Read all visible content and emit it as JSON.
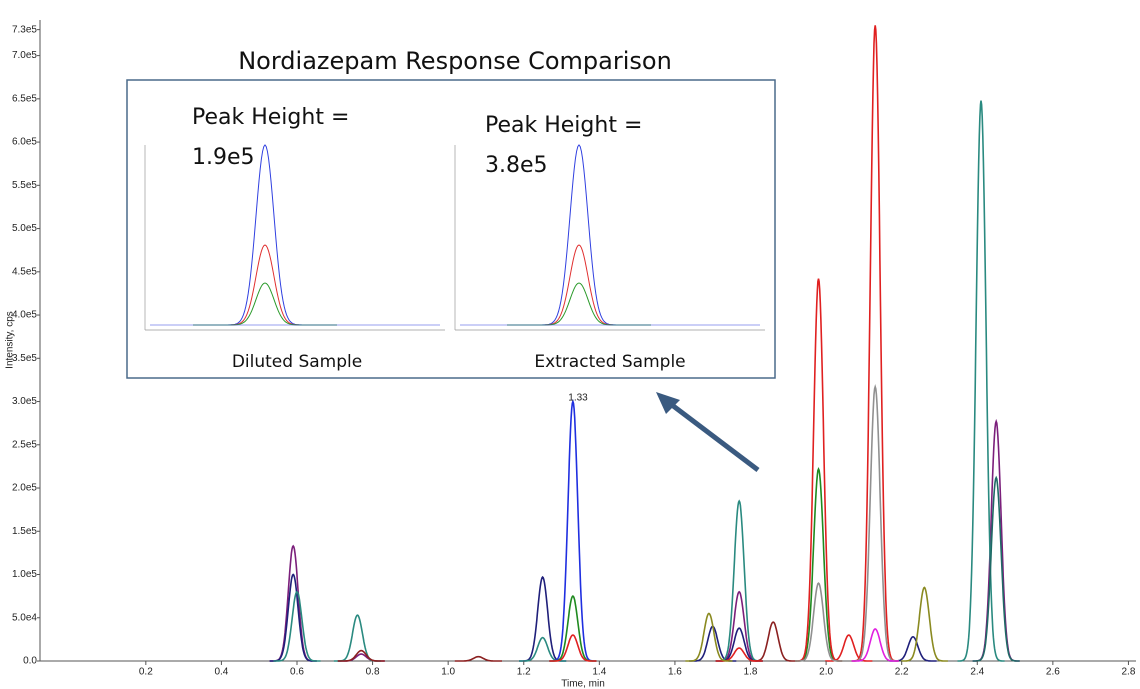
{
  "chart_data": {
    "type": "chromatogram",
    "inset_title": "Nordiazepam Response Comparison",
    "inset_texts": [
      "Peak Height =",
      "1.9e5",
      "Peak Height =",
      "3.8e5"
    ],
    "inset_captions": [
      "Diluted Sample",
      "Extracted Sample"
    ],
    "peak_label": "1.33",
    "xlabel": "Time, min",
    "ylabel": "Intensity, cps",
    "xlim": [
      -0.08,
      2.82
    ],
    "ylim": [
      0,
      740000
    ],
    "xticks": [
      0.2,
      0.4,
      0.6,
      0.8,
      {
        "value": 1.0,
        "label": "1.0"
      },
      1.2,
      1.4,
      1.6,
      1.8,
      {
        "value": 2.0,
        "label": "2.0"
      },
      2.2,
      2.4,
      2.6,
      2.8
    ],
    "yticks": [
      {
        "value": 0,
        "label": "0.0"
      },
      {
        "value": 50000,
        "label": "5.0e4"
      },
      {
        "value": 100000,
        "label": "1.0e5"
      },
      {
        "value": 150000,
        "label": "1.5e5"
      },
      {
        "value": 200000,
        "label": "2.0e5"
      },
      {
        "value": 250000,
        "label": "2.5e5"
      },
      {
        "value": 300000,
        "label": "3.0e5"
      },
      {
        "value": 350000,
        "label": "3.5e5"
      },
      {
        "value": 400000,
        "label": "4.0e5"
      },
      {
        "value": 450000,
        "label": "4.5e5"
      },
      {
        "value": 500000,
        "label": "5.0e5"
      },
      {
        "value": 550000,
        "label": "5.5e5"
      },
      {
        "value": 600000,
        "label": "6.0e5"
      },
      {
        "value": 650000,
        "label": "6.5e5"
      },
      {
        "value": 700000,
        "label": "7.0e5"
      },
      {
        "value": 730000,
        "label": "7.3e5"
      }
    ],
    "series": [
      {
        "color": "#7b1f7b",
        "x": [
          0.59,
          0.77,
          1.77,
          2.45
        ],
        "values": [
          133000,
          8000,
          80000,
          277000
        ]
      },
      {
        "color": "#1f1f7a",
        "x": [
          0.59,
          1.25,
          1.7,
          1.77,
          2.23
        ],
        "values": [
          100000,
          97000,
          40000,
          38000,
          28000
        ]
      },
      {
        "color": "#2a8a80",
        "x": [
          0.6,
          0.76,
          1.25,
          1.77,
          2.41
        ],
        "values": [
          80000,
          53000,
          27000,
          185000,
          648000
        ]
      },
      {
        "color": "#1f6a66",
        "x": [
          2.45
        ],
        "values": [
          212000
        ]
      },
      {
        "color": "#8b2020",
        "x": [
          0.77,
          1.08,
          1.86
        ],
        "values": [
          12000,
          5000,
          45000
        ]
      },
      {
        "color": "#1f2fe0",
        "x": [
          1.33
        ],
        "values": [
          300000
        ]
      },
      {
        "color": "#1f8a1f",
        "x": [
          1.33,
          1.98
        ],
        "values": [
          75000,
          222000
        ]
      },
      {
        "color": "#e02020",
        "x": [
          1.33,
          1.77,
          1.98,
          2.06,
          2.13
        ],
        "values": [
          30000,
          15000,
          442000,
          30000,
          735000
        ]
      },
      {
        "color": "#909090",
        "x": [
          1.98,
          2.13
        ],
        "values": [
          90000,
          317000
        ]
      },
      {
        "color": "#8a8a20",
        "x": [
          1.69,
          2.26
        ],
        "values": [
          55000,
          85000
        ]
      },
      {
        "color": "#e020e0",
        "x": [
          2.13
        ],
        "values": [
          37000
        ]
      }
    ]
  }
}
